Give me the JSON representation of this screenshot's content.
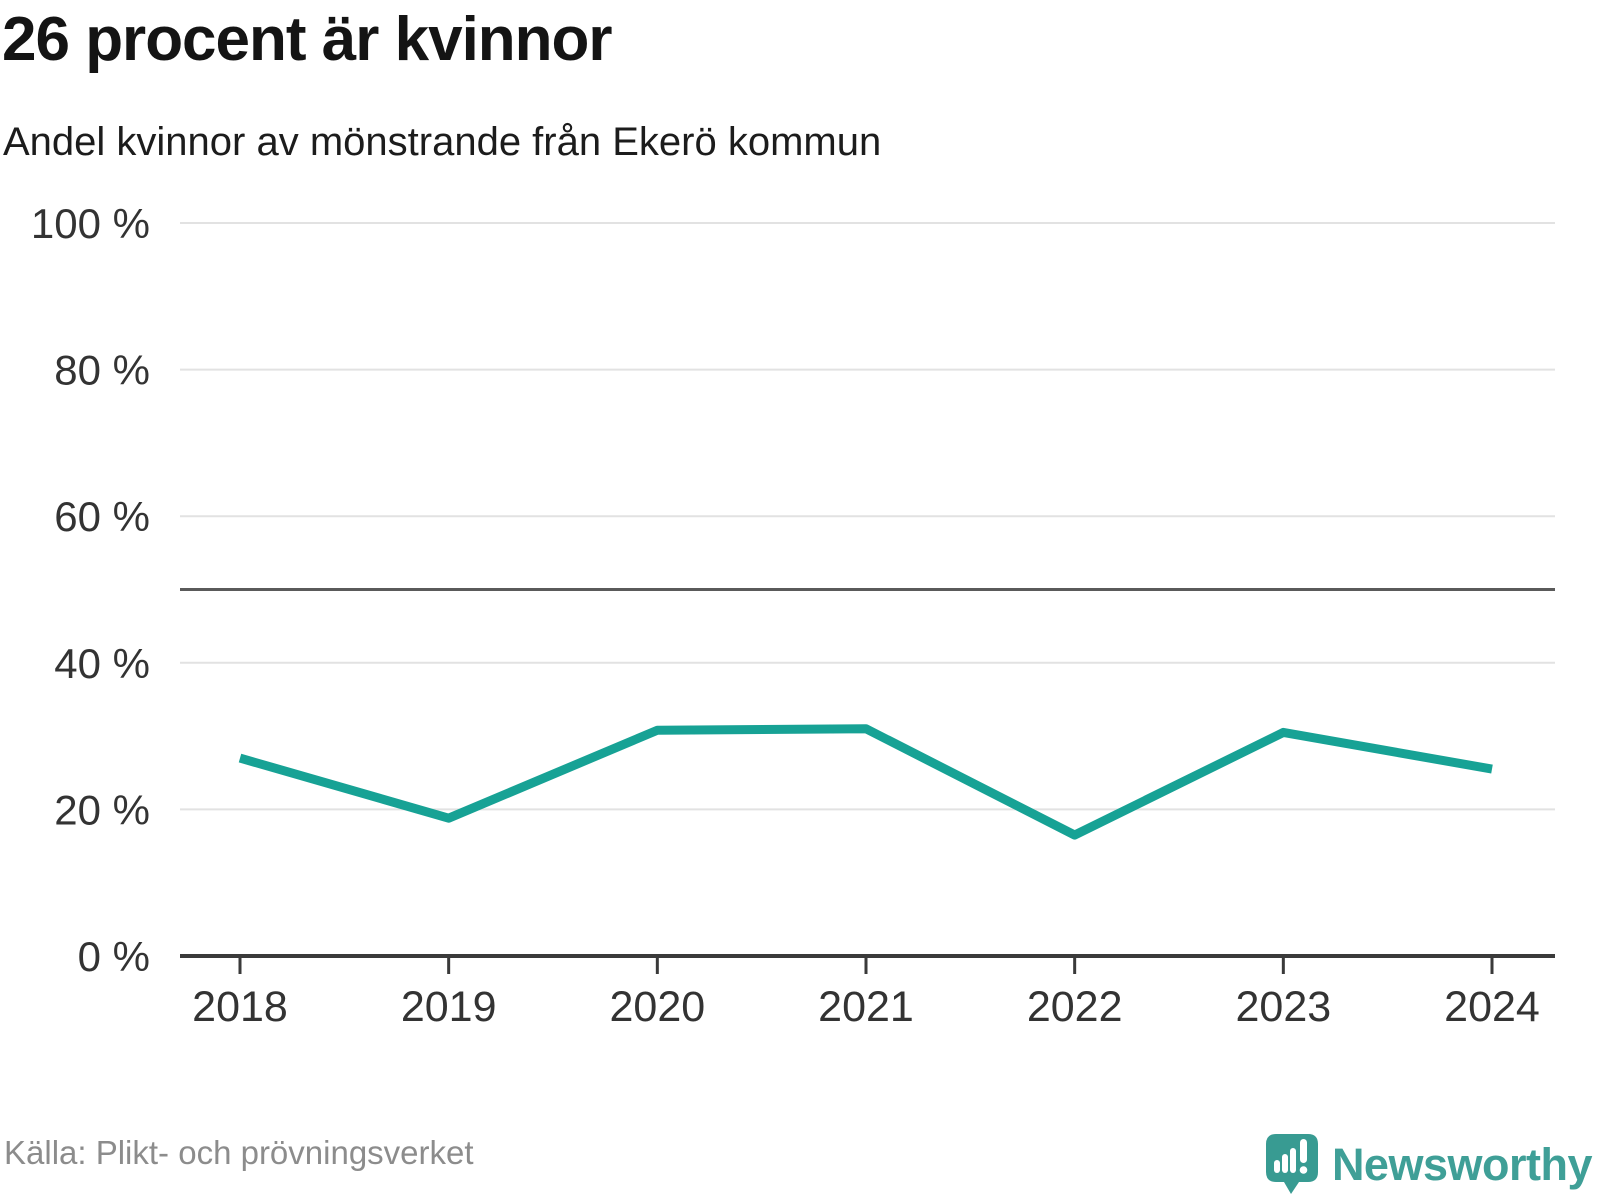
{
  "header": {
    "title": "26 procent är kvinnor",
    "subtitle": "Andel kvinnor av mönstrande från Ekerö kommun"
  },
  "chart_data": {
    "type": "line",
    "title": "26 procent är kvinnor",
    "subtitle": "Andel kvinnor av mönstrande från Ekerö kommun",
    "x": [
      "2018",
      "2019",
      "2020",
      "2021",
      "2022",
      "2023",
      "2024"
    ],
    "series": [
      {
        "name": "Andel kvinnor av mönstrande",
        "values": [
          27.0,
          18.8,
          30.8,
          31.0,
          16.5,
          30.5,
          25.5
        ]
      }
    ],
    "unit": "%",
    "ylim": [
      0,
      100
    ],
    "yticks": [
      0,
      20,
      40,
      60,
      80,
      100
    ],
    "ytick_labels": [
      "0 %",
      "20 %",
      "40 %",
      "60 %",
      "80 %",
      "100 %"
    ],
    "reference_line": 50,
    "grid": true,
    "legend": "none",
    "line_color": "#17a295"
  },
  "footer": {
    "source": "Källa: Plikt- och prövningsverket",
    "brand": "Newsworthy"
  },
  "colors": {
    "line": "#17a295",
    "grid": "#e2e2e2",
    "reference_line": "#5a5a5a",
    "axis": "#3a3a3a",
    "tick_text": "#333333",
    "source_text": "#8c8c8c",
    "brand_teal": "#3f9f97",
    "logo_bubble": "#389b92"
  }
}
